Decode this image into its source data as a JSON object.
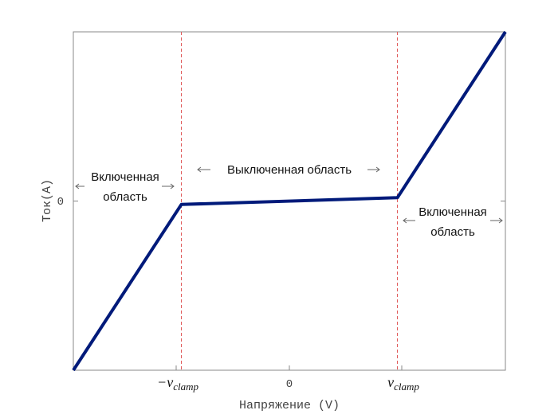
{
  "chart_data": {
    "type": "line",
    "title": "",
    "xlabel": "Напряжение (V)",
    "ylabel": "Ток(A)",
    "x_ticks": [
      {
        "value": -1,
        "label_sign": "−",
        "label_var": "v",
        "label_sub": "clamp"
      },
      {
        "value": 0,
        "label": "0"
      },
      {
        "value": 1,
        "label_sign": "",
        "label_var": "v",
        "label_sub": "clamp"
      }
    ],
    "y_ticks": [
      {
        "value": 0,
        "label": "0"
      }
    ],
    "xlim": [
      -2,
      2
    ],
    "ylim": [
      -1,
      1
    ],
    "grid": false,
    "series": [
      {
        "color": "#001a7a",
        "x": [
          -2,
          -1,
          1,
          2
        ],
        "y": [
          -1,
          -0.02,
          0.02,
          1
        ]
      }
    ],
    "clamp_lines": {
      "x": [
        -1,
        1
      ],
      "color": "#e05a5a"
    },
    "annotations": {
      "left_region": [
        "Включенная",
        "область"
      ],
      "middle_region": "Выключенная область",
      "right_region": [
        "Включенная",
        "область"
      ]
    }
  }
}
